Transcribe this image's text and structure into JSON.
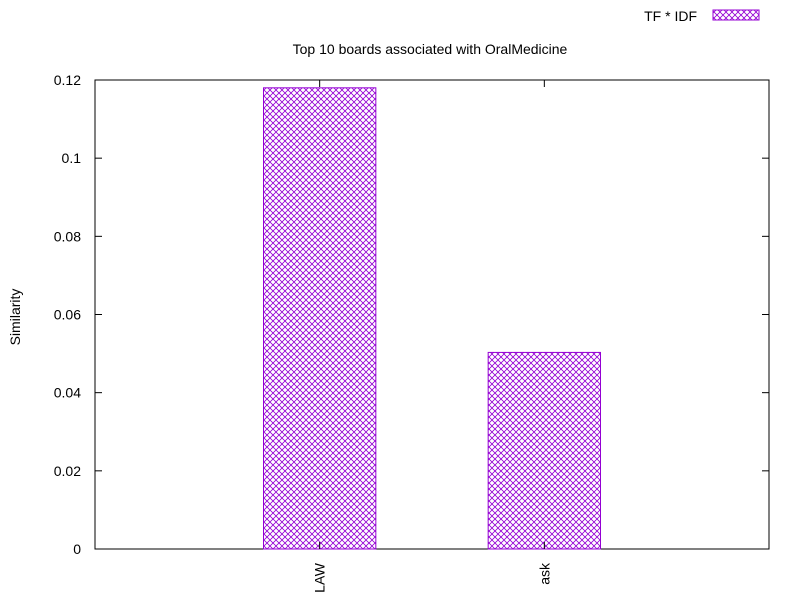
{
  "chart_data": {
    "type": "bar",
    "title": "Top 10 boards associated with OralMedicine",
    "xlabel": "",
    "ylabel": "Similarity",
    "categories": [
      "LAW",
      "ask"
    ],
    "series": [
      {
        "name": "TF * IDF",
        "values": [
          0.118,
          0.0503
        ]
      }
    ],
    "ylim": [
      0,
      0.12
    ],
    "yticks": [
      {
        "value": 0,
        "label": "0"
      },
      {
        "value": 0.02,
        "label": "0.02"
      },
      {
        "value": 0.04,
        "label": "0.04"
      },
      {
        "value": 0.06,
        "label": "0.06"
      },
      {
        "value": 0.08,
        "label": "0.08"
      },
      {
        "value": 0.1,
        "label": "0.1"
      },
      {
        "value": 0.12,
        "label": "0.12"
      }
    ],
    "grid": false,
    "legend_position": "top-right",
    "bar_pattern": "crosshatch",
    "series_color": "#9400d3"
  }
}
